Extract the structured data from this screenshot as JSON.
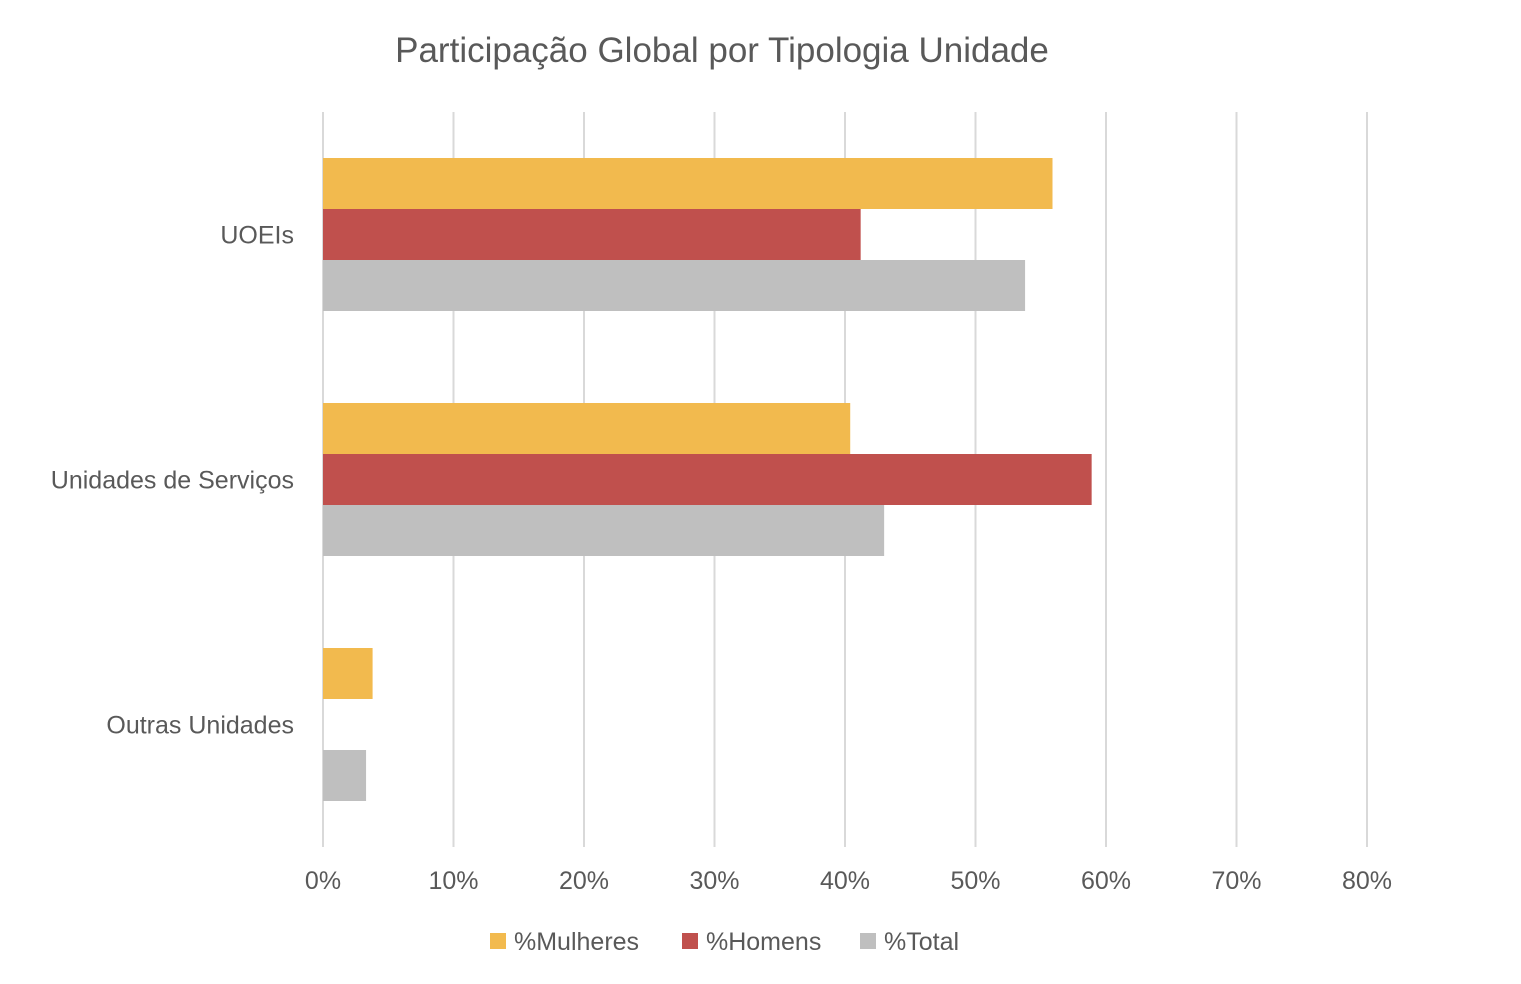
{
  "chart_data": {
    "type": "bar",
    "orientation": "horizontal",
    "title": "Participação Global por Tipologia Unidade",
    "categories": [
      "UOEIs",
      "Unidades de Serviços",
      "Outras Unidades"
    ],
    "series": [
      {
        "name": "%Mulheres",
        "color": "#F2BA4E",
        "values": [
          55.9,
          40.4,
          3.8
        ]
      },
      {
        "name": "%Homens",
        "color": "#C0504D",
        "values": [
          41.2,
          58.9,
          0
        ]
      },
      {
        "name": "%Total",
        "color": "#BFBFBF",
        "values": [
          53.8,
          43.0,
          3.3
        ]
      }
    ],
    "xlim": [
      0,
      80
    ],
    "xticks": [
      "0%",
      "10%",
      "20%",
      "30%",
      "40%",
      "50%",
      "60%",
      "70%",
      "80%"
    ],
    "grid": "vertical",
    "legend": "bottom",
    "xlabel": "",
    "ylabel": ""
  }
}
